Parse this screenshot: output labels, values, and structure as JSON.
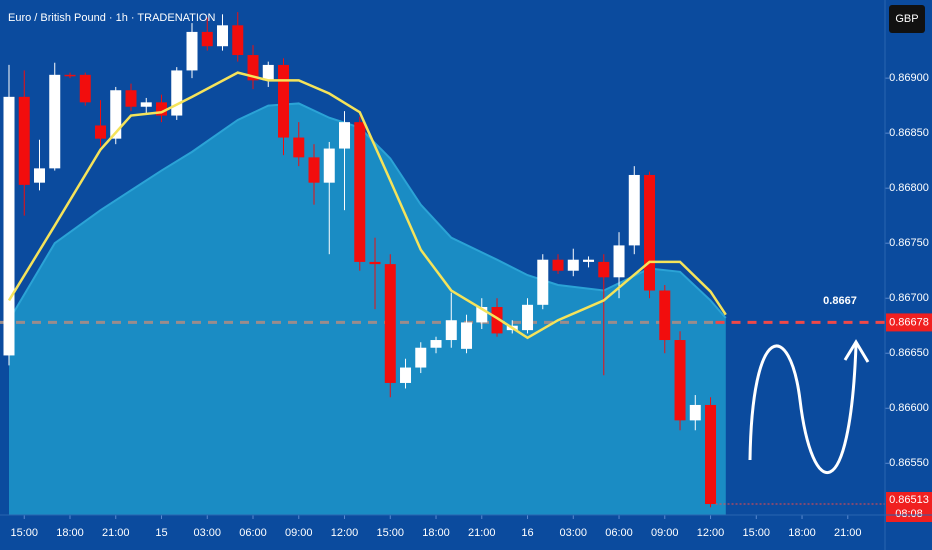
{
  "chart_data": {
    "type": "candlestick",
    "title": "Euro / British Pound · 1h · TRADENATION",
    "currency_button": "GBP",
    "annotation": "0.8667",
    "last_price": 0.86513,
    "countdown": "08:08",
    "current_line": 0.86678,
    "xlim": [
      -0.59,
      57.44
    ],
    "ylim": [
      0.86503,
      0.86971
    ],
    "yticks": [
      {
        "value": 0.8655,
        "label": "0.86550"
      },
      {
        "value": 0.866,
        "label": "0.86600"
      },
      {
        "value": 0.8665,
        "label": "0.86650"
      },
      {
        "value": 0.867,
        "label": "0.86700"
      },
      {
        "value": 0.8675,
        "label": "0.86750"
      },
      {
        "value": 0.868,
        "label": "0.86800"
      },
      {
        "value": 0.8685,
        "label": "0.86850"
      },
      {
        "value": 0.869,
        "label": "0.86900"
      }
    ],
    "xticks": [
      {
        "value": 1,
        "label": "15:00"
      },
      {
        "value": 4,
        "label": "18:00"
      },
      {
        "value": 7,
        "label": "21:00"
      },
      {
        "value": 10,
        "label": "15"
      },
      {
        "value": 13,
        "label": "03:00"
      },
      {
        "value": 16,
        "label": "06:00"
      },
      {
        "value": 19,
        "label": "09:00"
      },
      {
        "value": 22,
        "label": "12:00"
      },
      {
        "value": 25,
        "label": "15:00"
      },
      {
        "value": 28,
        "label": "18:00"
      },
      {
        "value": 31,
        "label": "21:00"
      },
      {
        "value": 34,
        "label": "16"
      },
      {
        "value": 37,
        "label": "03:00"
      },
      {
        "value": 40,
        "label": "06:00"
      },
      {
        "value": 43,
        "label": "09:00"
      },
      {
        "value": 46,
        "label": "12:00"
      },
      {
        "value": 49,
        "label": "15:00"
      },
      {
        "value": 52,
        "label": "18:00"
      },
      {
        "value": 55,
        "label": "21:00"
      }
    ],
    "up_color": "#ffffff",
    "down_color": "#f20d0d",
    "candles": [
      [
        0.86648,
        0.86912,
        0.86639,
        0.86883
      ],
      [
        0.86883,
        0.86907,
        0.86775,
        0.86803
      ],
      [
        0.86805,
        0.86844,
        0.86798,
        0.86818
      ],
      [
        0.86818,
        0.86914,
        0.86816,
        0.86903
      ],
      [
        0.86903,
        0.86905,
        0.869,
        0.86902
      ],
      [
        0.86903,
        0.86905,
        0.86875,
        0.86878
      ],
      [
        0.86857,
        0.8688,
        0.86838,
        0.86845
      ],
      [
        0.86845,
        0.86892,
        0.8684,
        0.86889
      ],
      [
        0.86889,
        0.86895,
        0.8687,
        0.86874
      ],
      [
        0.86874,
        0.86882,
        0.86868,
        0.86878
      ],
      [
        0.86878,
        0.86885,
        0.8686,
        0.86866
      ],
      [
        0.86866,
        0.8691,
        0.86862,
        0.86907
      ],
      [
        0.86907,
        0.8695,
        0.869,
        0.86942
      ],
      [
        0.86942,
        0.86955,
        0.86925,
        0.86929
      ],
      [
        0.86929,
        0.86958,
        0.86925,
        0.86948
      ],
      [
        0.86948,
        0.8696,
        0.86915,
        0.86921
      ],
      [
        0.86921,
        0.8693,
        0.8689,
        0.86898
      ],
      [
        0.86898,
        0.86915,
        0.86892,
        0.86912
      ],
      [
        0.86912,
        0.86918,
        0.8683,
        0.86846
      ],
      [
        0.86846,
        0.8686,
        0.8682,
        0.86828
      ],
      [
        0.86828,
        0.8684,
        0.86785,
        0.86805
      ],
      [
        0.86805,
        0.86842,
        0.8674,
        0.86836
      ],
      [
        0.86836,
        0.8687,
        0.8678,
        0.8686
      ],
      [
        0.8686,
        0.86865,
        0.86725,
        0.86733
      ],
      [
        0.86733,
        0.86755,
        0.8669,
        0.86731
      ],
      [
        0.86731,
        0.8674,
        0.8661,
        0.86623
      ],
      [
        0.86623,
        0.86645,
        0.86618,
        0.86637
      ],
      [
        0.86637,
        0.8666,
        0.86632,
        0.86655
      ],
      [
        0.86655,
        0.86665,
        0.8665,
        0.86662
      ],
      [
        0.86662,
        0.86705,
        0.86655,
        0.8668
      ],
      [
        0.86654,
        0.86685,
        0.8665,
        0.86678
      ],
      [
        0.86678,
        0.867,
        0.86672,
        0.86692
      ],
      [
        0.86692,
        0.867,
        0.86665,
        0.86668
      ],
      [
        0.86671,
        0.8668,
        0.86668,
        0.86675
      ],
      [
        0.86671,
        0.867,
        0.86668,
        0.86694
      ],
      [
        0.86694,
        0.8674,
        0.8669,
        0.86735
      ],
      [
        0.86735,
        0.8674,
        0.86722,
        0.86725
      ],
      [
        0.86725,
        0.86745,
        0.8672,
        0.86735
      ],
      [
        0.86733,
        0.86738,
        0.86728,
        0.86735
      ],
      [
        0.86733,
        0.8674,
        0.8663,
        0.86719
      ],
      [
        0.86719,
        0.8676,
        0.867,
        0.86748
      ],
      [
        0.86748,
        0.8682,
        0.8674,
        0.86812
      ],
      [
        0.86812,
        0.86815,
        0.867,
        0.86707
      ],
      [
        0.86707,
        0.86712,
        0.8665,
        0.86662
      ],
      [
        0.86662,
        0.8667,
        0.8658,
        0.86589
      ],
      [
        0.86589,
        0.86612,
        0.8658,
        0.86603
      ],
      [
        0.86603,
        0.8661,
        0.8651,
        0.86513
      ]
    ],
    "fast_ma": {
      "color": "#f5e35a",
      "x": [
        0,
        3,
        6,
        8,
        10,
        12,
        15,
        17,
        19,
        21,
        23,
        25,
        27,
        29,
        32,
        34,
        36,
        39,
        42,
        44,
        46,
        47
      ],
      "values": [
        0.86698,
        0.86766,
        0.86835,
        0.86866,
        0.86869,
        0.86883,
        0.86905,
        0.86898,
        0.86898,
        0.86886,
        0.86869,
        0.86807,
        0.86744,
        0.86707,
        0.86682,
        0.86664,
        0.8668,
        0.86698,
        0.86733,
        0.86733,
        0.86706,
        0.86685
      ]
    },
    "slow_ma": {
      "color": "#2ba3d6",
      "fill": "#1a8cc4",
      "x": [
        0,
        3,
        6,
        8,
        10,
        12,
        15,
        17,
        19,
        21,
        23,
        25,
        27,
        29,
        32,
        34,
        36,
        39,
        42,
        44,
        46,
        47
      ],
      "values": [
        0.8668,
        0.8675,
        0.8678,
        0.86798,
        0.86816,
        0.86833,
        0.86862,
        0.86875,
        0.86877,
        0.86864,
        0.86855,
        0.86827,
        0.86785,
        0.86755,
        0.86735,
        0.86721,
        0.86712,
        0.86707,
        0.86727,
        0.86724,
        0.86698,
        0.86682
      ]
    }
  }
}
